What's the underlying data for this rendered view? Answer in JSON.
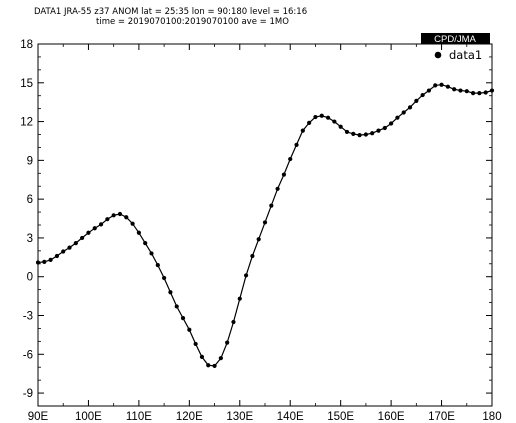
{
  "header": {
    "line1": "DATA1  JRA-55  z37  ANOM  lat = 25:35  lon = 90:180  level = 16:16",
    "line2": "time = 2019070100:2019070100  ave = 1MO"
  },
  "badge": {
    "text": "CPD/JMA"
  },
  "legend": {
    "label": "data1"
  },
  "chart_data": {
    "type": "line",
    "title": "",
    "xlabel": "",
    "ylabel": "",
    "xlim": [
      90,
      180
    ],
    "ylim": [
      -10,
      18
    ],
    "x_ticks": [
      90,
      100,
      110,
      120,
      130,
      140,
      150,
      160,
      170,
      180
    ],
    "x_tick_labels": [
      "90E",
      "100E",
      "110E",
      "120E",
      "130E",
      "140E",
      "150E",
      "160E",
      "170E",
      "180"
    ],
    "y_ticks": [
      18,
      15,
      12,
      9,
      6,
      3,
      0,
      -3,
      -6,
      -9
    ],
    "y_tick_labels": [
      "18",
      "15",
      "12",
      "9",
      "6",
      "3",
      "0",
      "-3",
      "-6",
      "-9"
    ],
    "grid": false,
    "legend_position": "top-right",
    "colors": {
      "line": "#000000",
      "badge_bg": "#000000"
    },
    "series": [
      {
        "name": "data1",
        "x": [
          90.0,
          91.25,
          92.5,
          93.75,
          95.0,
          96.25,
          97.5,
          98.75,
          100.0,
          101.25,
          102.5,
          103.75,
          105.0,
          106.25,
          107.5,
          108.75,
          110.0,
          111.25,
          112.5,
          113.75,
          115.0,
          116.25,
          117.5,
          118.75,
          120.0,
          121.25,
          122.5,
          123.75,
          125.0,
          126.25,
          127.5,
          128.75,
          130.0,
          131.25,
          132.5,
          133.75,
          135.0,
          136.25,
          137.5,
          138.75,
          140.0,
          141.25,
          142.5,
          143.75,
          145.0,
          146.25,
          147.5,
          148.75,
          150.0,
          151.25,
          152.5,
          153.75,
          155.0,
          156.25,
          157.5,
          158.75,
          160.0,
          161.25,
          162.5,
          163.75,
          165.0,
          166.25,
          167.5,
          168.75,
          170.0,
          171.25,
          172.5,
          173.75,
          175.0,
          176.25,
          177.5,
          178.75,
          180.0
        ],
        "values": [
          1.1,
          1.15,
          1.3,
          1.6,
          1.95,
          2.25,
          2.6,
          3.0,
          3.4,
          3.75,
          4.05,
          4.45,
          4.75,
          4.85,
          4.6,
          4.1,
          3.4,
          2.6,
          1.8,
          0.9,
          -0.1,
          -1.2,
          -2.3,
          -3.2,
          -4.1,
          -5.2,
          -6.2,
          -6.85,
          -6.9,
          -6.3,
          -5.1,
          -3.5,
          -1.7,
          0.1,
          1.6,
          2.9,
          4.2,
          5.5,
          6.8,
          7.9,
          9.1,
          10.2,
          11.3,
          11.9,
          12.35,
          12.45,
          12.3,
          12.0,
          11.6,
          11.2,
          11.05,
          10.95,
          11.0,
          11.1,
          11.3,
          11.5,
          11.85,
          12.3,
          12.7,
          13.1,
          13.6,
          14.05,
          14.4,
          14.8,
          14.85,
          14.7,
          14.5,
          14.4,
          14.35,
          14.2,
          14.2,
          14.25,
          14.4
        ]
      }
    ]
  }
}
